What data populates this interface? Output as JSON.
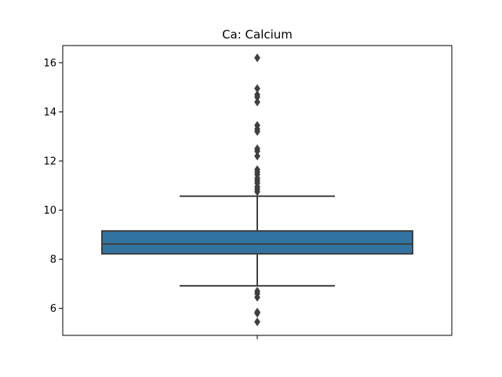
{
  "chart_data": {
    "type": "box",
    "title": "Ca: Calcium",
    "xlabel": "",
    "ylabel": "",
    "ylim": [
      4.9,
      16.7
    ],
    "yticks": [
      6,
      8,
      10,
      12,
      14,
      16
    ],
    "grid": false,
    "legend": "none",
    "box_color": "#3274a1",
    "edge_color": "#3f3f3f",
    "box": {
      "q1": 8.22,
      "median": 8.62,
      "q3": 9.15,
      "whisker_low": 6.92,
      "whisker_high": 10.57
    },
    "outliers": [
      16.2,
      14.95,
      14.7,
      14.6,
      14.4,
      13.45,
      13.3,
      13.2,
      12.5,
      12.4,
      12.2,
      11.65,
      11.55,
      11.45,
      11.3,
      11.2,
      11.1,
      10.95,
      10.85,
      10.75,
      6.7,
      6.6,
      6.45,
      5.85,
      5.8,
      5.45
    ]
  }
}
